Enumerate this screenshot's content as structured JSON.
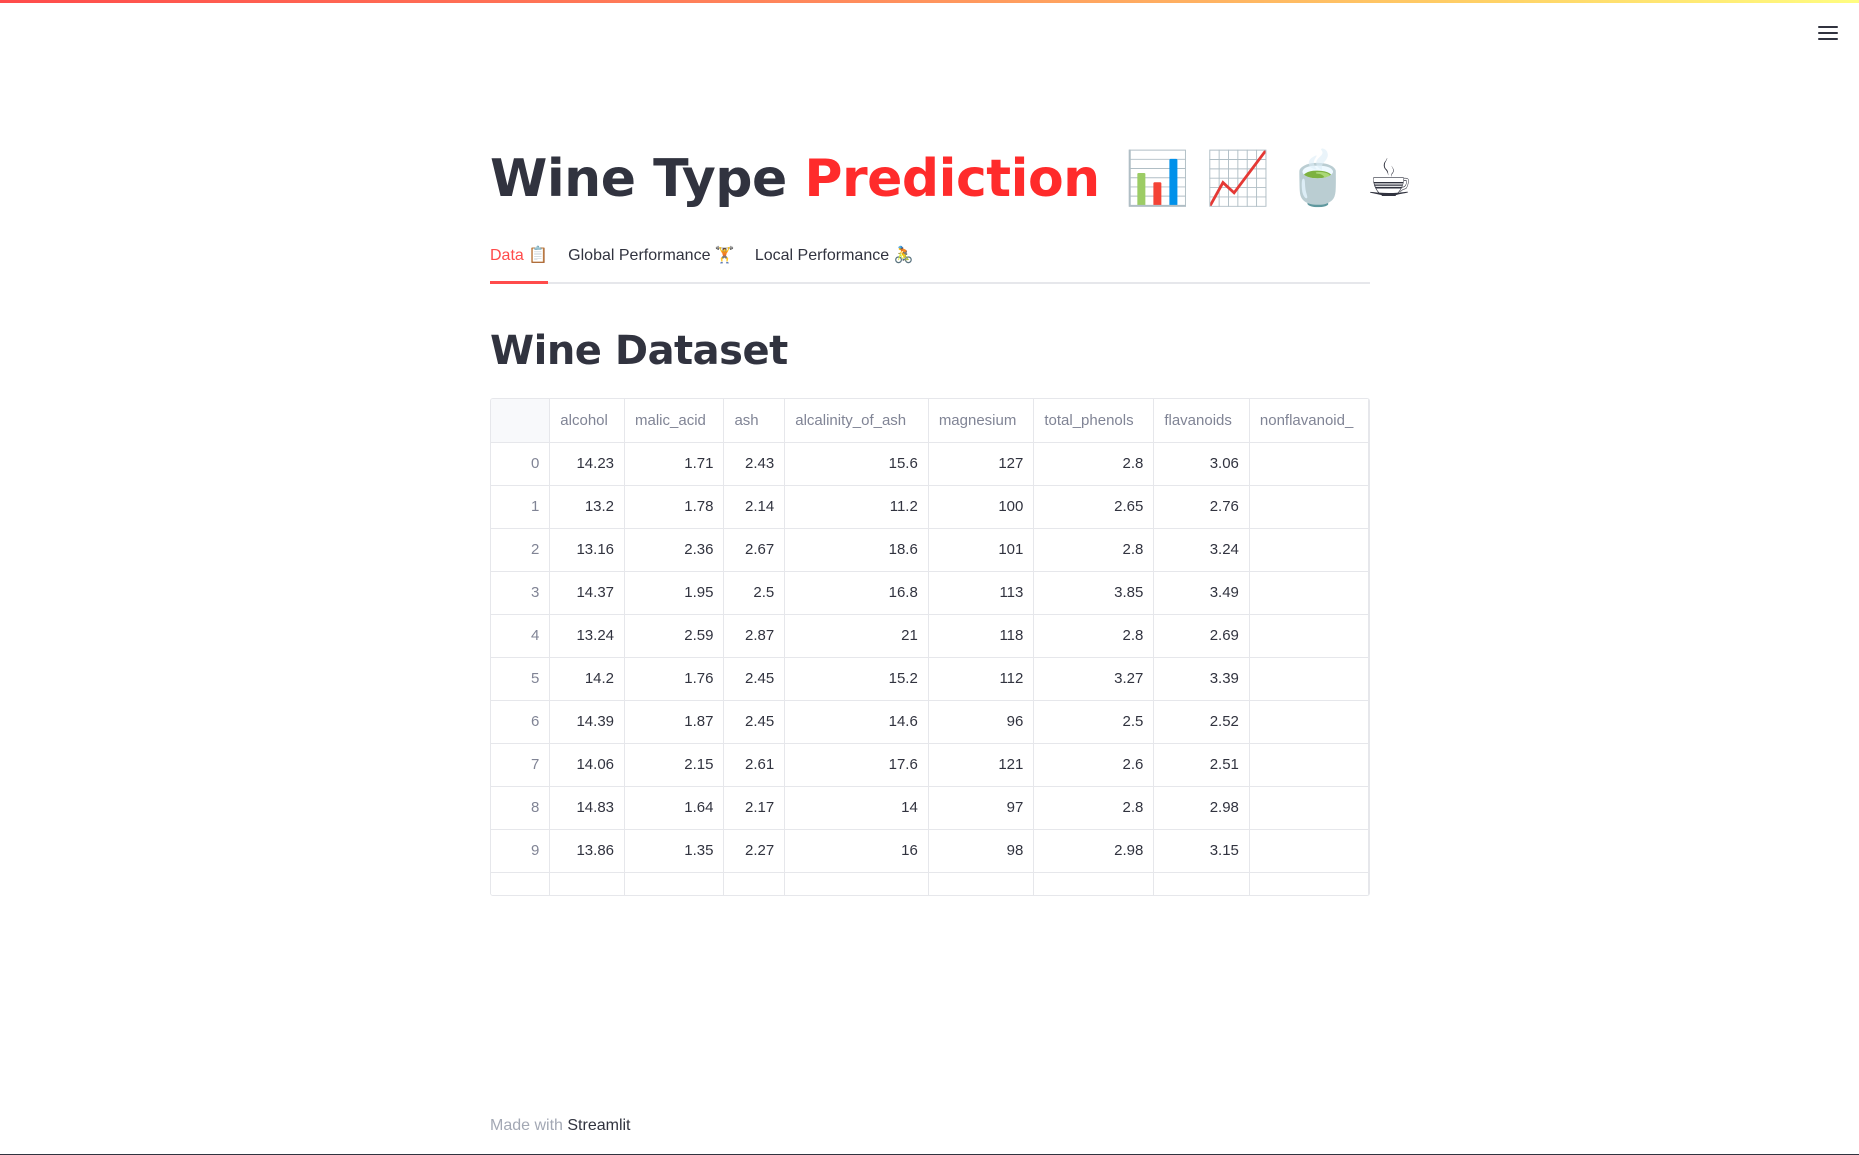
{
  "header": {
    "menu_icon": "hamburger-menu-icon"
  },
  "title": {
    "part1": "Wine Type",
    "part2": "Prediction",
    "emojis": "📊 📈 🍵 ☕"
  },
  "tabs": [
    {
      "label": "Data 📋",
      "active": true
    },
    {
      "label": "Global Performance 🏋",
      "active": false
    },
    {
      "label": "Local Performance 🚴",
      "active": false
    }
  ],
  "section": {
    "heading": "Wine Dataset"
  },
  "table": {
    "columns": [
      "alcohol",
      "malic_acid",
      "ash",
      "alcalinity_of_ash",
      "magnesium",
      "total_phenols",
      "flavanoids",
      "nonflavanoid_"
    ],
    "rows": [
      {
        "index": "0",
        "cells": [
          "14.23",
          "1.71",
          "2.43",
          "15.6",
          "127",
          "2.8",
          "3.06",
          ""
        ]
      },
      {
        "index": "1",
        "cells": [
          "13.2",
          "1.78",
          "2.14",
          "11.2",
          "100",
          "2.65",
          "2.76",
          ""
        ]
      },
      {
        "index": "2",
        "cells": [
          "13.16",
          "2.36",
          "2.67",
          "18.6",
          "101",
          "2.8",
          "3.24",
          ""
        ]
      },
      {
        "index": "3",
        "cells": [
          "14.37",
          "1.95",
          "2.5",
          "16.8",
          "113",
          "3.85",
          "3.49",
          ""
        ]
      },
      {
        "index": "4",
        "cells": [
          "13.24",
          "2.59",
          "2.87",
          "21",
          "118",
          "2.8",
          "2.69",
          ""
        ]
      },
      {
        "index": "5",
        "cells": [
          "14.2",
          "1.76",
          "2.45",
          "15.2",
          "112",
          "3.27",
          "3.39",
          ""
        ]
      },
      {
        "index": "6",
        "cells": [
          "14.39",
          "1.87",
          "2.45",
          "14.6",
          "96",
          "2.5",
          "2.52",
          ""
        ]
      },
      {
        "index": "7",
        "cells": [
          "14.06",
          "2.15",
          "2.61",
          "17.6",
          "121",
          "2.6",
          "2.51",
          ""
        ]
      },
      {
        "index": "8",
        "cells": [
          "14.83",
          "1.64",
          "2.17",
          "14",
          "97",
          "2.8",
          "2.98",
          ""
        ]
      },
      {
        "index": "9",
        "cells": [
          "13.86",
          "1.35",
          "2.27",
          "16",
          "98",
          "2.98",
          "3.15",
          ""
        ]
      },
      {
        "index": "",
        "cells": [
          "",
          "",
          "",
          "",
          "",
          "",
          "",
          ""
        ]
      }
    ]
  },
  "footer": {
    "prefix": "Made with",
    "brand": "Streamlit"
  },
  "colors": {
    "accent": "#ff4b4b",
    "text": "#31333f",
    "muted": "#808495",
    "border": "#e6e7eb"
  }
}
